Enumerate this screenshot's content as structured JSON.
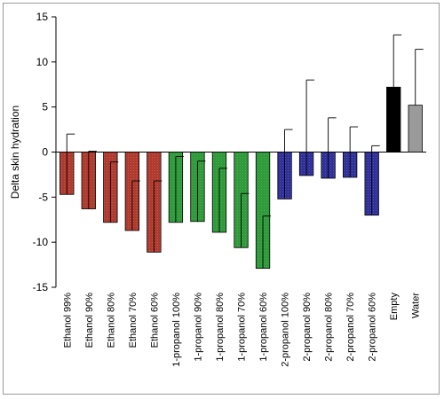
{
  "chart_data": {
    "type": "bar",
    "title": "",
    "xlabel": "",
    "ylabel": "Delta skin hydration",
    "ylim": [
      -15,
      15
    ],
    "yticks": [
      -15,
      -10,
      -5,
      0,
      5,
      10,
      15
    ],
    "grid": false,
    "legend": "none",
    "categories": [
      "Ethanol 99%",
      "Ethanol 90%",
      "Ethanol 80%",
      "Ethanol 70%",
      "Ethanol 60%",
      "1-propanol 100%",
      "1-propanol 90%",
      "1-propanol 80%",
      "1-propanol 70%",
      "1-propanol 60%",
      "2-propanol 100%",
      "2-propanol 90%",
      "2-propanol 80%",
      "2-propanol 70%",
      "2-propanol 60%",
      "Empty",
      "Water"
    ],
    "values": [
      -4.7,
      -6.3,
      -7.8,
      -8.7,
      -11.1,
      -7.8,
      -7.7,
      -8.9,
      -10.6,
      -12.9,
      -5.2,
      -2.6,
      -2.9,
      -2.8,
      -7.0,
      7.2,
      5.2
    ],
    "errors": [
      6.7,
      6.4,
      6.7,
      5.5,
      7.9,
      7.3,
      6.7,
      7.1,
      6.0,
      5.8,
      7.7,
      10.6,
      6.7,
      5.6,
      7.7,
      5.8,
      6.2
    ],
    "colors": [
      "#b03a2e",
      "#b03a2e",
      "#b03a2e",
      "#b03a2e",
      "#b03a2e",
      "#2e9a3a",
      "#2e9a3a",
      "#2e9a3a",
      "#2e9a3a",
      "#2e9a3a",
      "#30309a",
      "#30309a",
      "#30309a",
      "#30309a",
      "#30309a",
      "#000000",
      "#9a9a9a"
    ]
  }
}
